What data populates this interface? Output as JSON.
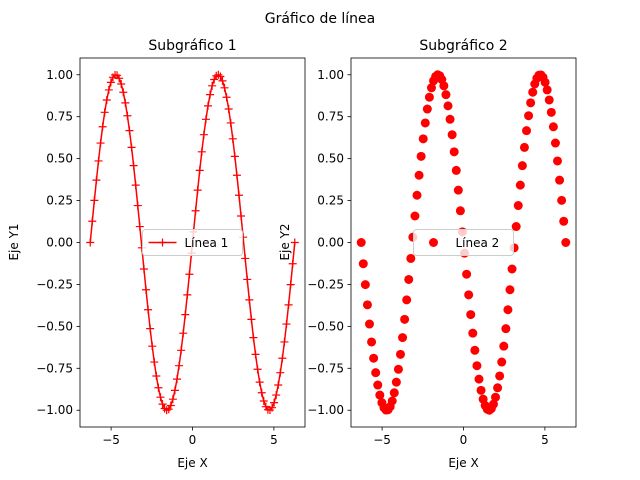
{
  "figure": {
    "suptitle": "Gráfico de línea"
  },
  "chart_data": [
    {
      "type": "line",
      "title": "Subgráfico 1",
      "xlabel": "Eje X",
      "ylabel": "Eje Y1",
      "xlim": [
        -6.9115,
        6.9115
      ],
      "ylim": [
        -1.1,
        1.1
      ],
      "xticks": [
        -5,
        0,
        5
      ],
      "xtick_labels": [
        "−5",
        "0",
        "5"
      ],
      "yticks": [
        -1.0,
        -0.75,
        -0.5,
        -0.25,
        0.0,
        0.25,
        0.5,
        0.75,
        1.0
      ],
      "ytick_labels": [
        "−1.00",
        "−0.75",
        "−0.50",
        "−0.25",
        "0.00",
        "0.25",
        "0.50",
        "0.75",
        "1.00"
      ],
      "grid": false,
      "legend": {
        "position": "center",
        "entries": [
          {
            "label": "Línea 1",
            "style": "line-plus"
          }
        ]
      },
      "series": [
        {
          "name": "Línea 1",
          "color": "#ff0000",
          "marker": "+",
          "linestyle": "solid",
          "function": "sin(x)",
          "x_range": [
            -6.2832,
            6.2832
          ],
          "n_points": 100
        }
      ]
    },
    {
      "type": "scatter",
      "title": "Subgráfico 2",
      "xlabel": "Eje X",
      "ylabel": "Eje Y2",
      "xlim": [
        -6.9115,
        6.9115
      ],
      "ylim": [
        -1.1,
        1.1
      ],
      "xticks": [
        -5,
        0,
        5
      ],
      "xtick_labels": [
        "−5",
        "0",
        "5"
      ],
      "yticks": [
        -1.0,
        -0.75,
        -0.5,
        -0.25,
        0.0,
        0.25,
        0.5,
        0.75,
        1.0
      ],
      "ytick_labels": [
        "−1.00",
        "−0.75",
        "−0.50",
        "−0.25",
        "0.00",
        "0.25",
        "0.50",
        "0.75",
        "1.00"
      ],
      "grid": false,
      "legend": {
        "position": "center",
        "entries": [
          {
            "label": "Línea 2",
            "style": "dot"
          }
        ]
      },
      "series": [
        {
          "name": "Línea 2",
          "color": "#ff0000",
          "marker": "o",
          "linestyle": "none",
          "function": "-sin(x)",
          "x_range": [
            -6.2832,
            6.2832
          ],
          "n_points": 100
        }
      ]
    }
  ]
}
